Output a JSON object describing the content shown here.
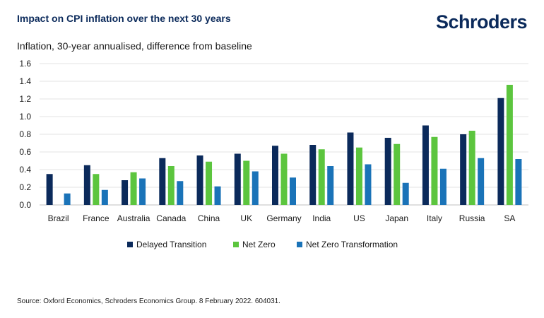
{
  "header": {
    "title": "Impact on CPI inflation over the next 30 years",
    "brand": "Schroders",
    "subtitle": "Inflation, 30-year annualised, difference from baseline"
  },
  "footer": {
    "source": "Source: Oxford Economics, Schroders Economics Group. 8 February 2022. 604031."
  },
  "chart_data": {
    "type": "bar",
    "title": "Impact on CPI inflation over the next 30 years",
    "subtitle": "Inflation, 30-year annualised, difference from baseline",
    "categories": [
      "Brazil",
      "France",
      "Australia",
      "Canada",
      "China",
      "UK",
      "Germany",
      "India",
      "US",
      "Japan",
      "Italy",
      "Russia",
      "SA"
    ],
    "series": [
      {
        "name": "Delayed Transition",
        "color": "#0b2a5b",
        "values": [
          0.35,
          0.45,
          0.28,
          0.53,
          0.56,
          0.58,
          0.67,
          0.68,
          0.82,
          0.76,
          0.9,
          0.8,
          1.21
        ]
      },
      {
        "name": "Net Zero",
        "color": "#5cc53e",
        "values": [
          0.0,
          0.35,
          0.37,
          0.44,
          0.49,
          0.5,
          0.58,
          0.63,
          0.65,
          0.69,
          0.77,
          0.84,
          1.36
        ]
      },
      {
        "name": "Net Zero Transformation",
        "color": "#1a73b8",
        "values": [
          0.13,
          0.17,
          0.3,
          0.27,
          0.21,
          0.38,
          0.31,
          0.44,
          0.46,
          0.25,
          0.41,
          0.53,
          0.52
        ]
      }
    ],
    "yticks": [
      "0.0",
      "0.2",
      "0.4",
      "0.6",
      "0.8",
      "1.0",
      "1.2",
      "1.4",
      "1.6"
    ],
    "ylim": [
      0,
      1.6
    ],
    "grid": true,
    "legend": "bottom"
  }
}
